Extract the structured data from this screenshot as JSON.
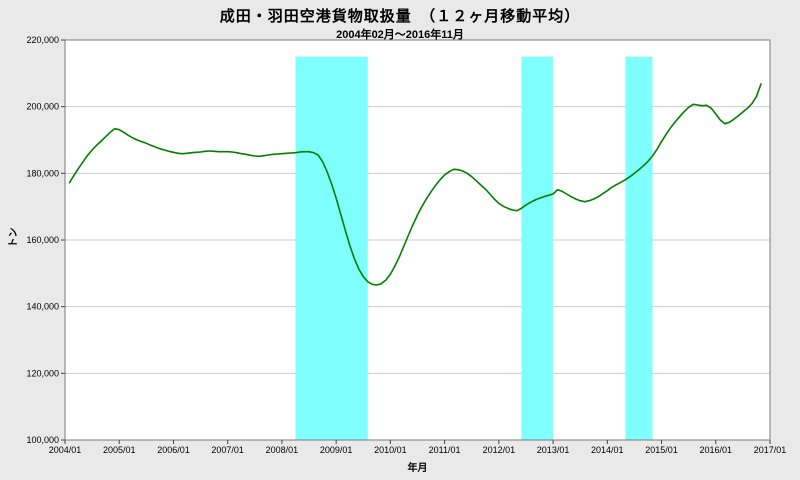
{
  "chart_data": {
    "type": "line",
    "title": "成田・羽田空港貨物取扱量　（１２ヶ月移動平均）",
    "subtitle": "2004年02月～2016年11月",
    "xlabel": "年月",
    "ylabel": "トン",
    "x_range": [
      2004.0,
      2017.0
    ],
    "ylim": [
      100000,
      220000
    ],
    "yticks": [
      "220,000",
      "200,000",
      "180,000",
      "160,000",
      "140,000",
      "120,000",
      "100,000"
    ],
    "xticks": [
      "2004/01",
      "2005/01",
      "2006/01",
      "2007/01",
      "2008/01",
      "2009/01",
      "2010/01",
      "2011/01",
      "2012/01",
      "2013/01",
      "2014/01",
      "2015/01",
      "2016/01",
      "2017/01"
    ],
    "grid": "horizontal",
    "legend": "none",
    "colors": {
      "line": "#008000",
      "band": "#80ffff",
      "grid": "#cccccc",
      "frame": "#7a7a7a",
      "plot_bg": "#ffffff",
      "page_bg": "#e9e9e9"
    },
    "band_top_value": 215000,
    "bands": [
      {
        "from": "2008/04",
        "to": "2009/08"
      },
      {
        "from": "2012/06",
        "to": "2013/01"
      },
      {
        "from": "2014/05",
        "to": "2014/11"
      }
    ],
    "series": [
      {
        "name": "成田・羽田空港貨物取扱量（12ヶ月移動平均）",
        "points": [
          [
            "2004/02",
            177200
          ],
          [
            "2004/03",
            179400
          ],
          [
            "2004/04",
            181500
          ],
          [
            "2004/05",
            183500
          ],
          [
            "2004/06",
            185400
          ],
          [
            "2004/07",
            187000
          ],
          [
            "2004/08",
            188400
          ],
          [
            "2004/09",
            189700
          ],
          [
            "2004/10",
            191000
          ],
          [
            "2004/11",
            192300
          ],
          [
            "2004/12",
            193400
          ],
          [
            "2005/01",
            193100
          ],
          [
            "2005/02",
            192300
          ],
          [
            "2005/03",
            191400
          ],
          [
            "2005/04",
            190600
          ],
          [
            "2005/05",
            190000
          ],
          [
            "2005/06",
            189500
          ],
          [
            "2005/07",
            189000
          ],
          [
            "2005/08",
            188400
          ],
          [
            "2005/09",
            187900
          ],
          [
            "2005/10",
            187400
          ],
          [
            "2005/11",
            187000
          ],
          [
            "2005/12",
            186600
          ],
          [
            "2006/01",
            186300
          ],
          [
            "2006/02",
            186000
          ],
          [
            "2006/03",
            185900
          ],
          [
            "2006/04",
            186000
          ],
          [
            "2006/05",
            186200
          ],
          [
            "2006/06",
            186300
          ],
          [
            "2006/07",
            186400
          ],
          [
            "2006/08",
            186600
          ],
          [
            "2006/09",
            186700
          ],
          [
            "2006/10",
            186600
          ],
          [
            "2006/11",
            186500
          ],
          [
            "2006/12",
            186500
          ],
          [
            "2007/01",
            186500
          ],
          [
            "2007/02",
            186400
          ],
          [
            "2007/03",
            186200
          ],
          [
            "2007/04",
            185900
          ],
          [
            "2007/05",
            185700
          ],
          [
            "2007/06",
            185400
          ],
          [
            "2007/07",
            185200
          ],
          [
            "2007/08",
            185100
          ],
          [
            "2007/09",
            185300
          ],
          [
            "2007/10",
            185500
          ],
          [
            "2007/11",
            185700
          ],
          [
            "2007/12",
            185800
          ],
          [
            "2008/01",
            185900
          ],
          [
            "2008/02",
            186000
          ],
          [
            "2008/03",
            186100
          ],
          [
            "2008/04",
            186200
          ],
          [
            "2008/05",
            186400
          ],
          [
            "2008/06",
            186500
          ],
          [
            "2008/07",
            186500
          ],
          [
            "2008/08",
            186200
          ],
          [
            "2008/09",
            185500
          ],
          [
            "2008/10",
            183500
          ],
          [
            "2008/11",
            180500
          ],
          [
            "2008/12",
            176800
          ],
          [
            "2009/01",
            172500
          ],
          [
            "2009/02",
            167800
          ],
          [
            "2009/03",
            163000
          ],
          [
            "2009/04",
            158500
          ],
          [
            "2009/05",
            154500
          ],
          [
            "2009/06",
            151300
          ],
          [
            "2009/07",
            149000
          ],
          [
            "2009/08",
            147500
          ],
          [
            "2009/09",
            146700
          ],
          [
            "2009/10",
            146500
          ],
          [
            "2009/11",
            146900
          ],
          [
            "2009/12",
            148000
          ],
          [
            "2010/01",
            149700
          ],
          [
            "2010/02",
            152200
          ],
          [
            "2010/03",
            155000
          ],
          [
            "2010/04",
            158200
          ],
          [
            "2010/05",
            161500
          ],
          [
            "2010/06",
            164600
          ],
          [
            "2010/07",
            167500
          ],
          [
            "2010/08",
            170100
          ],
          [
            "2010/09",
            172400
          ],
          [
            "2010/10",
            174500
          ],
          [
            "2010/11",
            176400
          ],
          [
            "2010/12",
            178100
          ],
          [
            "2011/01",
            179500
          ],
          [
            "2011/02",
            180500
          ],
          [
            "2011/03",
            181200
          ],
          [
            "2011/04",
            181100
          ],
          [
            "2011/05",
            180700
          ],
          [
            "2011/06",
            180000
          ],
          [
            "2011/07",
            179000
          ],
          [
            "2011/08",
            177800
          ],
          [
            "2011/09",
            176500
          ],
          [
            "2011/10",
            175300
          ],
          [
            "2011/11",
            173800
          ],
          [
            "2011/12",
            172300
          ],
          [
            "2012/01",
            171000
          ],
          [
            "2012/02",
            170100
          ],
          [
            "2012/03",
            169500
          ],
          [
            "2012/04",
            169000
          ],
          [
            "2012/05",
            168800
          ],
          [
            "2012/06",
            169500
          ],
          [
            "2012/07",
            170500
          ],
          [
            "2012/08",
            171300
          ],
          [
            "2012/09",
            172000
          ],
          [
            "2012/10",
            172500
          ],
          [
            "2012/11",
            173000
          ],
          [
            "2012/12",
            173400
          ],
          [
            "2013/01",
            173800
          ],
          [
            "2013/02",
            175100
          ],
          [
            "2013/03",
            174600
          ],
          [
            "2013/04",
            173800
          ],
          [
            "2013/05",
            173000
          ],
          [
            "2013/06",
            172300
          ],
          [
            "2013/07",
            171800
          ],
          [
            "2013/08",
            171500
          ],
          [
            "2013/09",
            171800
          ],
          [
            "2013/10",
            172300
          ],
          [
            "2013/11",
            173000
          ],
          [
            "2013/12",
            173900
          ],
          [
            "2014/01",
            174800
          ],
          [
            "2014/02",
            175800
          ],
          [
            "2014/03",
            176600
          ],
          [
            "2014/04",
            177300
          ],
          [
            "2014/05",
            178100
          ],
          [
            "2014/06",
            179000
          ],
          [
            "2014/07",
            180000
          ],
          [
            "2014/08",
            181100
          ],
          [
            "2014/09",
            182300
          ],
          [
            "2014/10",
            183600
          ],
          [
            "2014/11",
            185200
          ],
          [
            "2014/12",
            187200
          ],
          [
            "2015/01",
            189500
          ],
          [
            "2015/02",
            191700
          ],
          [
            "2015/03",
            193700
          ],
          [
            "2015/04",
            195400
          ],
          [
            "2015/05",
            197000
          ],
          [
            "2015/06",
            198500
          ],
          [
            "2015/07",
            199800
          ],
          [
            "2015/08",
            200700
          ],
          [
            "2015/09",
            200500
          ],
          [
            "2015/10",
            200300
          ],
          [
            "2015/11",
            200400
          ],
          [
            "2015/12",
            199500
          ],
          [
            "2016/01",
            197800
          ],
          [
            "2016/02",
            196000
          ],
          [
            "2016/03",
            194900
          ],
          [
            "2016/04",
            195300
          ],
          [
            "2016/05",
            196200
          ],
          [
            "2016/06",
            197300
          ],
          [
            "2016/07",
            198400
          ],
          [
            "2016/08",
            199500
          ],
          [
            "2016/09",
            200900
          ],
          [
            "2016/10",
            203000
          ],
          [
            "2016/11",
            206800
          ]
        ]
      }
    ]
  }
}
